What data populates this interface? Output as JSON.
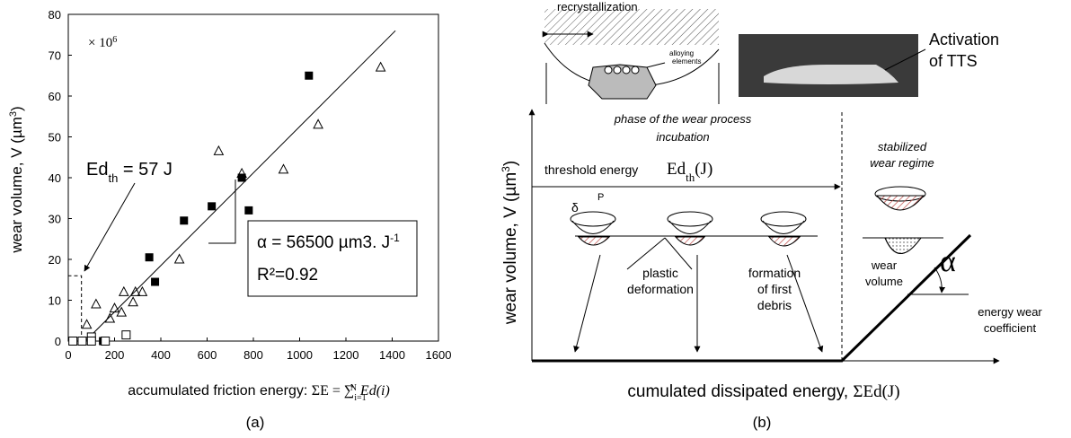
{
  "chart_data": {
    "type": "scatter",
    "multiplier": [
      "× 10",
      "6"
    ],
    "ylabel": [
      "wear volume, V (µm",
      "3",
      ")"
    ],
    "xlabel": [
      "accumulated friction energy: ",
      "ΣE = ∑",
      "i=1",
      "N",
      " Ed(i)"
    ],
    "threshold_label": [
      "Ed",
      "th",
      " = 57 J"
    ],
    "alpha_label": [
      "α = 56500 µm3. J",
      "-1"
    ],
    "r2_label": "R²=0.92",
    "caption": "(a)",
    "xlim": [
      0,
      1600
    ],
    "ylim": [
      0,
      80
    ],
    "xticks": [
      0,
      200,
      400,
      600,
      800,
      1000,
      1200,
      1400,
      1600
    ],
    "yticks": [
      0,
      10,
      20,
      30,
      40,
      50,
      60,
      70,
      80
    ],
    "threshold": {
      "x": 57,
      "y": 16
    },
    "fit_line": {
      "x": [
        74,
        1414
      ],
      "values": [
        0,
        76
      ]
    },
    "series": [
      {
        "color": "#000000",
        "marker": "filled-square",
        "x": [
          150,
          350,
          375,
          500,
          620,
          750,
          780,
          1040
        ],
        "values": [
          0,
          20.5,
          14.5,
          29.5,
          33,
          40,
          32,
          65
        ]
      },
      {
        "color": "#000000",
        "marker": "open-square",
        "x": [
          20,
          60,
          100,
          100,
          160,
          250
        ],
        "values": [
          0,
          0,
          1,
          0,
          0,
          1.5
        ]
      },
      {
        "color": "#000000",
        "marker": "open-triangle",
        "x": [
          80,
          120,
          180,
          200,
          230,
          240,
          280,
          290,
          320,
          480,
          650,
          750,
          930,
          1080,
          1350
        ],
        "values": [
          4,
          9,
          5.5,
          8,
          7,
          12,
          9.5,
          12,
          12,
          20,
          46.5,
          41,
          42,
          53,
          67
        ]
      }
    ]
  },
  "diagram": {
    "recrystallization": "recrystallization",
    "alloying": [
      "alloying",
      "elements"
    ],
    "activation": [
      "Activation",
      "of TTS"
    ],
    "phase": "phase of the wear process",
    "incubation": "incubation",
    "threshold": "threshold energy",
    "edth": [
      "Ed",
      "th",
      "(J)"
    ],
    "stabilized": [
      "stabilized",
      "wear regime"
    ],
    "delta": "δ",
    "p": "P",
    "plastic": [
      "plastic",
      "deformation"
    ],
    "formation": [
      "formation",
      "of first",
      "debris"
    ],
    "wear_volume": [
      "wear",
      "volume"
    ],
    "alpha": "α",
    "coefficient": [
      "energy wear",
      "coefficient"
    ],
    "ylabel": [
      "wear volume, V (µm",
      "3",
      ")"
    ],
    "xlabel": [
      "cumulated dissipated energy, ",
      "ΣEd(J)"
    ],
    "caption": "(b)"
  }
}
